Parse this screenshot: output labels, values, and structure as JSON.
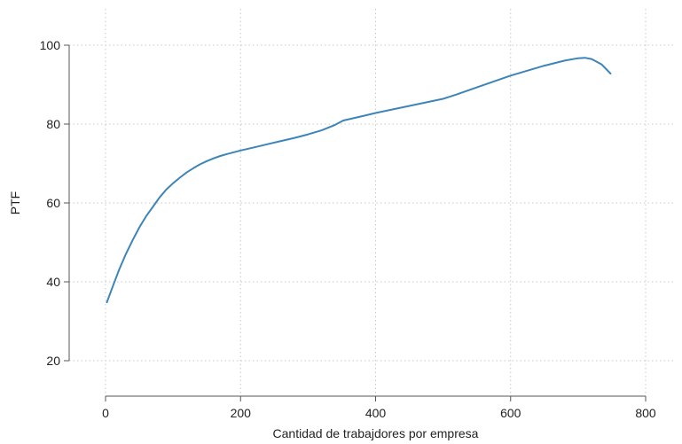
{
  "chart_data": {
    "type": "line",
    "title": "",
    "xlabel": "Cantidad de trabajdores por empresa",
    "ylabel": "PTF",
    "xlim": [
      0,
      800
    ],
    "ylim": [
      20,
      100
    ],
    "x_ticks": [
      0,
      200,
      400,
      600,
      800
    ],
    "y_ticks": [
      20,
      40,
      60,
      80,
      100
    ],
    "x_tick_labels": [
      "0",
      "200",
      "400",
      "600",
      "800"
    ],
    "y_tick_labels": [
      "20",
      "40",
      "60",
      "80",
      "100"
    ],
    "grid": true,
    "series": [
      {
        "color": "#3d85b8",
        "x": [
          2,
          10,
          20,
          30,
          40,
          50,
          60,
          70,
          80,
          90,
          100,
          110,
          120,
          130,
          140,
          150,
          160,
          170,
          180,
          200,
          220,
          240,
          260,
          280,
          300,
          320,
          340,
          352,
          380,
          400,
          450,
          500,
          520,
          550,
          600,
          620,
          650,
          680,
          700,
          710,
          720,
          735,
          748
        ],
        "y": [
          34.8,
          38.5,
          43.0,
          47.0,
          50.5,
          53.8,
          56.6,
          59.0,
          61.4,
          63.4,
          65.0,
          66.4,
          67.7,
          68.8,
          69.8,
          70.6,
          71.3,
          71.9,
          72.4,
          73.3,
          74.1,
          74.9,
          75.7,
          76.5,
          77.4,
          78.4,
          79.8,
          80.9,
          82.0,
          82.8,
          84.6,
          86.4,
          87.5,
          89.3,
          92.3,
          93.3,
          94.8,
          96.1,
          96.7,
          96.8,
          96.5,
          95.1,
          92.8
        ]
      }
    ]
  }
}
